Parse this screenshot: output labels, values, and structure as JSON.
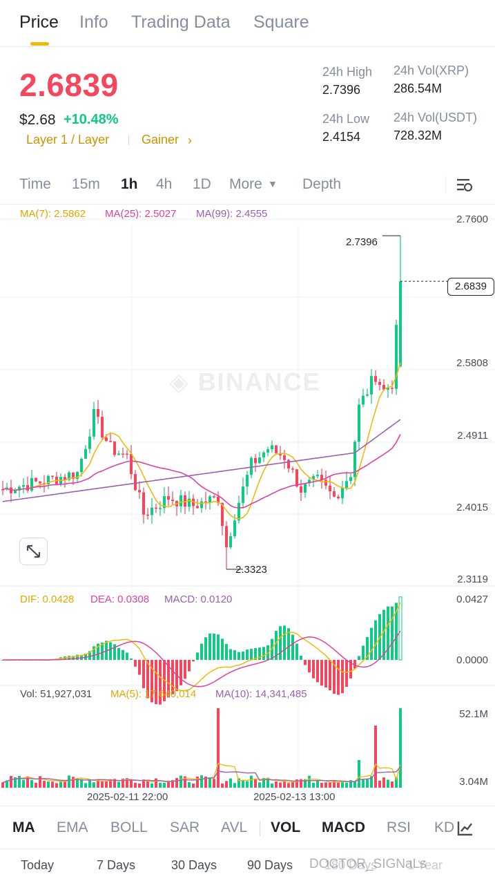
{
  "tabs": {
    "price": "Price",
    "info": "Info",
    "trading_data": "Trading Data",
    "square": "Square"
  },
  "header": {
    "last_price": "2.6839",
    "usd_price": "$2.68",
    "change_pct": "+10.48%",
    "tag_layer": "Layer 1 / Layer",
    "tag_gainer": "Gainer",
    "high_label": "24h High",
    "high_value": "2.7396",
    "low_label": "24h Low",
    "low_value": "2.4154",
    "vol_xrp_label": "24h Vol(XRP)",
    "vol_xrp_value": "286.54M",
    "vol_usdt_label": "24h Vol(USDT)",
    "vol_usdt_value": "728.32M"
  },
  "intervals": {
    "time": "Time",
    "m15": "15m",
    "h1": "1h",
    "h4": "4h",
    "d1": "1D",
    "more": "More",
    "depth": "Depth"
  },
  "chart": {
    "ma7": "MA(7): 2.5862",
    "ma25": "MA(25): 2.5027",
    "ma99": "MA(99): 2.4555",
    "price_axis": [
      "2.7600",
      "2.5808",
      "2.4911",
      "2.4015",
      "2.3119"
    ],
    "current_price_tag": "2.6839",
    "high_mark": "2.7396",
    "low_mark": "2.3323",
    "watermark": "BINANCE",
    "macd_dif": "DIF: 0.0428",
    "macd_dea": "DEA: 0.0308",
    "macd_val": "MACD: 0.0120",
    "macd_axis_top": "0.0427",
    "macd_axis_zero": "0.0000",
    "vol_label": "Vol: 51,927,031",
    "vol_ma5": "MA(5): 17,640,014",
    "vol_ma10": "MA(10): 14,341,485",
    "vol_axis_top": "52.1M",
    "vol_axis_bottom": "3.04M",
    "date1": "2025-02-11 22:00",
    "date2": "2025-02-13 13:00"
  },
  "indicator_tabs": {
    "ma": "MA",
    "ema": "EMA",
    "boll": "BOLL",
    "sar": "SAR",
    "avl": "AVL",
    "vol": "VOL",
    "macd": "MACD",
    "rsi": "RSI",
    "kd": "KD"
  },
  "period_tabs": {
    "today": "Today",
    "d7": "7 Days",
    "d30": "30 Days",
    "d90": "90 Days",
    "d180": "180 Days",
    "y1": "1 Year"
  },
  "overlay_watermark": "DOCTOR_SIGNaLs",
  "colors": {
    "up": "#0ecb81",
    "down": "#f6465d",
    "ma7": "#f0b90b",
    "ma25": "#e040a0",
    "ma99": "#9c5fb5",
    "accent": "#f0b90b"
  },
  "icons": {
    "chart_settings": "chart-settings-icon",
    "expand": "expand-icon",
    "dropdown": "caret-down-icon",
    "gainer_arrow": "chevron-right-icon",
    "indicator_settings": "indicator-settings-icon"
  }
}
